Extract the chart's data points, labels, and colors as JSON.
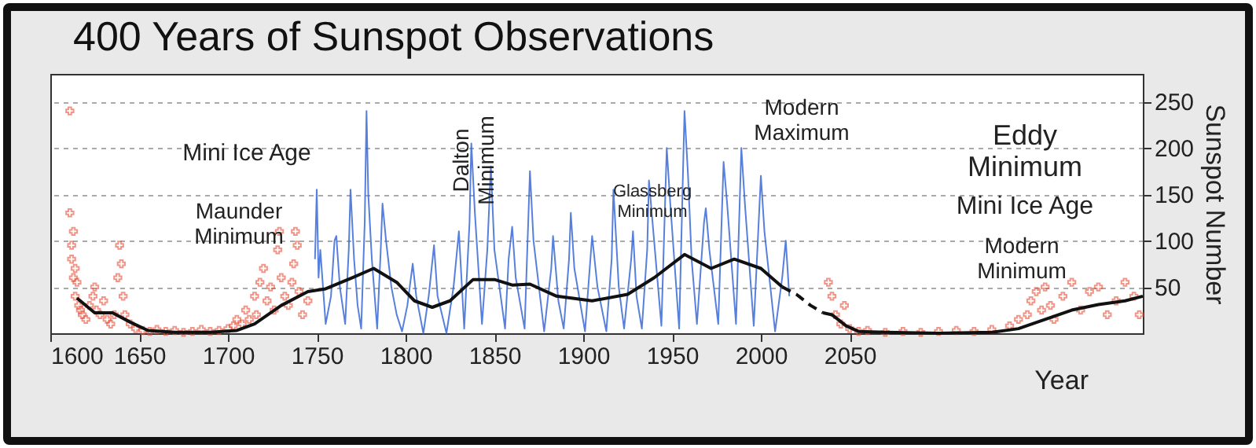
{
  "chart_data": {
    "type": "line",
    "title": "400 Years of Sunspot Observations",
    "xlabel": "Year",
    "ylabel": "Sunspot Number",
    "xlim": [
      1600,
      2215
    ],
    "xticks": [
      1600,
      1650,
      1700,
      1750,
      1800,
      1850,
      1900,
      1950,
      2000,
      2050
    ],
    "ylim": [
      0,
      280
    ],
    "yticks": [
      50,
      100,
      150,
      200,
      250
    ],
    "grid": "y",
    "series": [
      {
        "type": "scatter",
        "marker": "cross",
        "color": "#e8503a",
        "x": [
          1611,
          1611,
          1612,
          1612,
          1613,
          1613,
          1614,
          1614,
          1615,
          1616,
          1617,
          1618,
          1620,
          1622,
          1624,
          1625,
          1626,
          1628,
          1630,
          1632,
          1634,
          1636,
          1638,
          1639,
          1640,
          1641,
          1642,
          1645,
          1648,
          1652,
          1656,
          1660,
          1665,
          1670,
          1675,
          1680,
          1685,
          1690,
          1695,
          1700,
          1703,
          1705,
          1708,
          1710,
          1712,
          1715,
          1716,
          1718,
          1720,
          1722,
          1724,
          1726,
          1728,
          1729,
          1730,
          1732,
          1734,
          1736,
          1737,
          1738,
          1739,
          1740,
          1742,
          1745
        ],
        "values": [
          240,
          130,
          95,
          80,
          110,
          60,
          70,
          40,
          55,
          30,
          25,
          20,
          15,
          30,
          40,
          50,
          25,
          20,
          35,
          15,
          10,
          20,
          60,
          95,
          75,
          40,
          20,
          10,
          5,
          3,
          2,
          4,
          2,
          3,
          1,
          2,
          4,
          2,
          3,
          5,
          8,
          15,
          10,
          25,
          15,
          40,
          20,
          55,
          70,
          35,
          50,
          25,
          90,
          110,
          60,
          40,
          30,
          55,
          75,
          110,
          95,
          45,
          20,
          35
        ]
      },
      {
        "type": "scatter",
        "marker": "cross",
        "color": "#e8503a",
        "x": [
          2038,
          2040,
          2042,
          2045,
          2047,
          2050,
          2055,
          2060,
          2070,
          2080,
          2090,
          2100,
          2110,
          2120,
          2130,
          2140,
          2145,
          2150,
          2152,
          2155,
          2158,
          2160,
          2163,
          2165,
          2170,
          2175,
          2180,
          2185,
          2190,
          2195,
          2200,
          2205,
          2210,
          2213
        ],
        "values": [
          55,
          40,
          20,
          10,
          30,
          5,
          2,
          3,
          1,
          2,
          1,
          2,
          3,
          2,
          4,
          8,
          15,
          20,
          35,
          45,
          25,
          50,
          30,
          15,
          40,
          55,
          25,
          45,
          50,
          20,
          35,
          55,
          40,
          20
        ]
      },
      {
        "color": "#3a6ad6",
        "x": [
          1749,
          1750,
          1751,
          1752,
          1755,
          1758,
          1760,
          1761,
          1763,
          1766,
          1768,
          1769,
          1771,
          1773,
          1775,
          1777,
          1778,
          1779,
          1781,
          1784,
          1786,
          1787,
          1789,
          1792,
          1795,
          1798,
          1801,
          1804,
          1806,
          1810,
          1813,
          1816,
          1818,
          1823,
          1827,
          1830,
          1833,
          1836,
          1837,
          1839,
          1843,
          1846,
          1848,
          1850,
          1856,
          1858,
          1860,
          1862,
          1867,
          1870,
          1872,
          1878,
          1882,
          1883,
          1886,
          1889,
          1892,
          1893,
          1895,
          1901,
          1905,
          1908,
          1913,
          1916,
          1917,
          1920,
          1923,
          1927,
          1928,
          1930,
          1933,
          1936,
          1937,
          1939,
          1944,
          1947,
          1949,
          1954,
          1957,
          1959,
          1961,
          1964,
          1968,
          1969,
          1971,
          1976,
          1979,
          1981,
          1986,
          1989,
          1991,
          1996,
          2000,
          2002,
          2008,
          2012,
          2014,
          2016
        ],
        "values": [
          80,
          155,
          60,
          90,
          10,
          40,
          100,
          105,
          50,
          10,
          90,
          155,
          80,
          30,
          5,
          120,
          240,
          150,
          80,
          5,
          90,
          140,
          100,
          50,
          20,
          2,
          30,
          75,
          40,
          0,
          40,
          95,
          40,
          0,
          50,
          110,
          5,
          120,
          205,
          130,
          10,
          90,
          180,
          90,
          5,
          80,
          115,
          60,
          5,
          175,
          100,
          2,
          70,
          105,
          35,
          5,
          80,
          130,
          70,
          2,
          105,
          50,
          2,
          80,
          155,
          50,
          5,
          80,
          110,
          40,
          5,
          90,
          165,
          120,
          8,
          200,
          140,
          5,
          240,
          170,
          80,
          10,
          120,
          135,
          90,
          10,
          185,
          140,
          10,
          200,
          140,
          8,
          170,
          110,
          2,
          60,
          100,
          40
        ]
      },
      {
        "color": "#111111",
        "x": [
          1615,
          1625,
          1635,
          1645,
          1655,
          1670,
          1690,
          1705,
          1715,
          1730,
          1745,
          1755,
          1770,
          1782,
          1795,
          1805,
          1815,
          1825,
          1838,
          1850,
          1860,
          1870,
          1885,
          1905,
          1925,
          1940,
          1957,
          1972,
          1985,
          2000,
          2012
        ],
        "values": [
          38,
          22,
          22,
          12,
          3,
          1,
          1,
          3,
          10,
          30,
          45,
          48,
          60,
          70,
          55,
          35,
          28,
          35,
          58,
          58,
          52,
          53,
          40,
          35,
          42,
          60,
          85,
          70,
          80,
          70,
          50
        ]
      },
      {
        "color": "#111111",
        "line_style": "dashed",
        "x": [
          2012,
          2020,
          2028,
          2035
        ],
        "values": [
          50,
          42,
          30,
          22
        ]
      },
      {
        "color": "#111111",
        "x": [
          2035,
          2040,
          2048,
          2055,
          2070,
          2100,
          2130,
          2145,
          2160,
          2175,
          2190,
          2205,
          2215
        ],
        "values": [
          22,
          20,
          8,
          2,
          1,
          0,
          1,
          5,
          15,
          25,
          31,
          35,
          40
        ]
      }
    ],
    "annotations": [
      "Mini Ice Age",
      "Maunder\nMinimum",
      "Dalton\nMinimum",
      "Glassberg\nMinimum",
      "Modern\nMaximum",
      "Eddy\nMinimum",
      "Mini Ice Age",
      "Modern\nMinimum"
    ]
  }
}
